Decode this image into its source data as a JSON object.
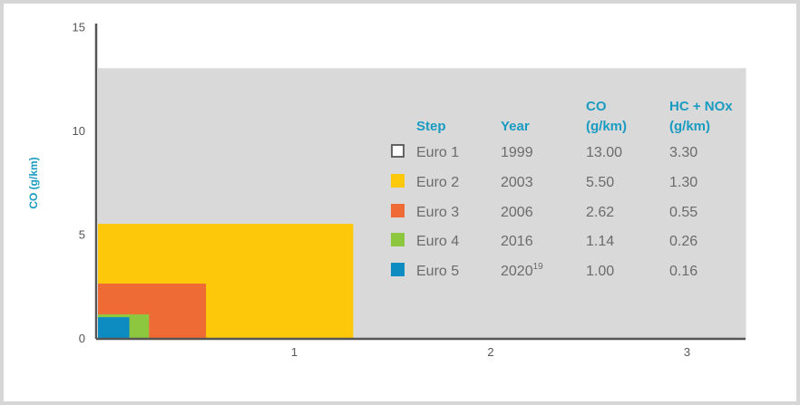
{
  "chart_data": {
    "type": "area",
    "ylabel": "CO (g/km)",
    "xlabel": "",
    "xlim": [
      0,
      3.3
    ],
    "ylim": [
      0,
      15
    ],
    "x_ticks": [
      "1",
      "2",
      "3"
    ],
    "y_ticks": [
      "0",
      "5",
      "10",
      "15"
    ],
    "x_tick_values": [
      1,
      2,
      3
    ],
    "y_tick_values": [
      0,
      5,
      10,
      15
    ],
    "series": [
      {
        "name": "Euro 1",
        "hc_nox": 3.3,
        "co": 13.0,
        "color": "#d9d9d9"
      },
      {
        "name": "Euro 2",
        "hc_nox": 1.3,
        "co": 5.5,
        "color": "#fdc70a"
      },
      {
        "name": "Euro 3",
        "hc_nox": 0.55,
        "co": 2.62,
        "color": "#ee6b35"
      },
      {
        "name": "Euro 4",
        "hc_nox": 0.26,
        "co": 1.14,
        "color": "#8dc63f"
      },
      {
        "name": "Euro 5",
        "hc_nox": 0.16,
        "co": 1.0,
        "color": "#0d8cc2"
      }
    ]
  },
  "table": {
    "headers": {
      "step": "Step",
      "year": "Year",
      "co_line1": "CO",
      "co_line2": "(g/km)",
      "hcnox_line1": "HC + NOx",
      "hcnox_line2": "(g/km)"
    },
    "rows": [
      {
        "step": "Euro 1",
        "year": "1999",
        "year_sup": "",
        "co": "13.00",
        "hcnox": "3.30",
        "swatch": "outline"
      },
      {
        "step": "Euro 2",
        "year": "2003",
        "year_sup": "",
        "co": "5.50",
        "hcnox": "1.30",
        "swatch": "#fdc70a"
      },
      {
        "step": "Euro 3",
        "year": "2006",
        "year_sup": "",
        "co": "2.62",
        "hcnox": "0.55",
        "swatch": "#ee6b35"
      },
      {
        "step": "Euro 4",
        "year": "2016",
        "year_sup": "",
        "co": "1.14",
        "hcnox": "0.26",
        "swatch": "#8dc63f"
      },
      {
        "step": "Euro 5",
        "year": "2020",
        "year_sup": "19",
        "co": "1.00",
        "hcnox": "0.16",
        "swatch": "#0d8cc2"
      }
    ]
  },
  "colors": {
    "header": "#1a9bc1",
    "axis": "#555555",
    "text": "#6b6b6b",
    "euro1_fill": "#d9d9d9"
  }
}
